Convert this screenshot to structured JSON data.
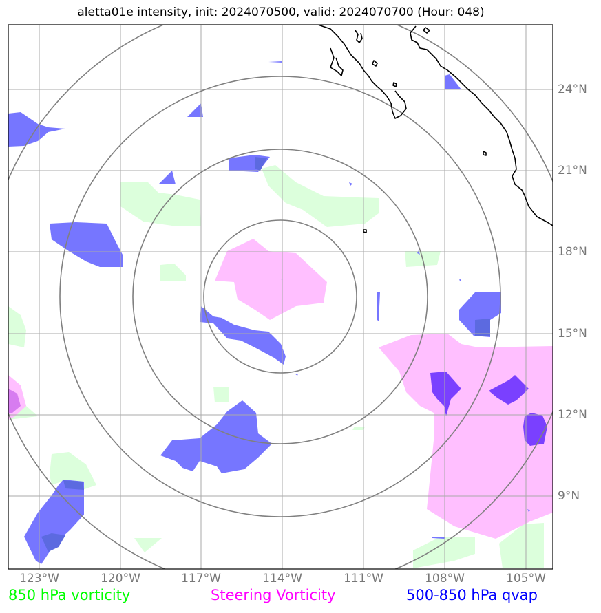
{
  "title": "aletta01e intensity, init: 2024070500, valid: 2024070700 (Hour: 048)",
  "longitude_labels": [
    "123°W",
    "120°W",
    "117°W",
    "114°W",
    "111°W",
    "108°W",
    "105°W"
  ],
  "latitude_labels": [
    "24°N",
    "21°N",
    "18°N",
    "15°N",
    "12°N",
    "9°N"
  ],
  "legend": {
    "vorticity_850": "850 hPa vorticity",
    "steering_vorticity": "Steering Vorticity",
    "qvap": "500-850 hPa qvap"
  },
  "colors": {
    "vorticity_850": "#00ff00",
    "steering_vorticity": "#ff00ff",
    "qvap": "#0000ff",
    "vorticity_fill": "#dcffdc",
    "steering_fill": "#ffbfff",
    "qvap_fill": "#7676ff",
    "grid": "#aaaaaa",
    "range_rings": "#808080",
    "coastline": "#000000"
  },
  "storm_center": {
    "lon": "114°W",
    "lat": "16.5°N"
  }
}
